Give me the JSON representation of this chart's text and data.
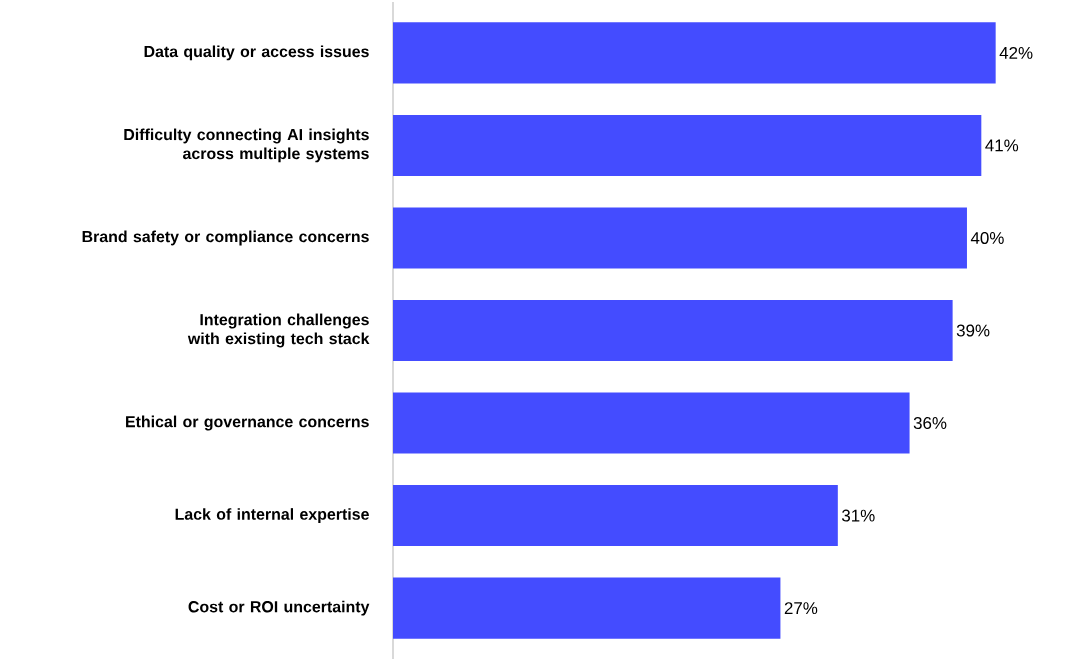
{
  "chart_data": {
    "type": "bar",
    "orientation": "horizontal",
    "categories": [
      "Data quality or access issues",
      "Difficulty connecting AI insights across multiple systems",
      "Brand safety or compliance concerns",
      "Integration challenges with existing tech stack",
      "Ethical or governance concerns",
      "Lack of internal expertise",
      "Cost or ROI uncertainty"
    ],
    "values": [
      42,
      41,
      40,
      39,
      36,
      31,
      27
    ],
    "value_labels": [
      "42%",
      "41%",
      "40%",
      "39%",
      "36%",
      "31%",
      "27%"
    ],
    "color": "#444cff"
  }
}
